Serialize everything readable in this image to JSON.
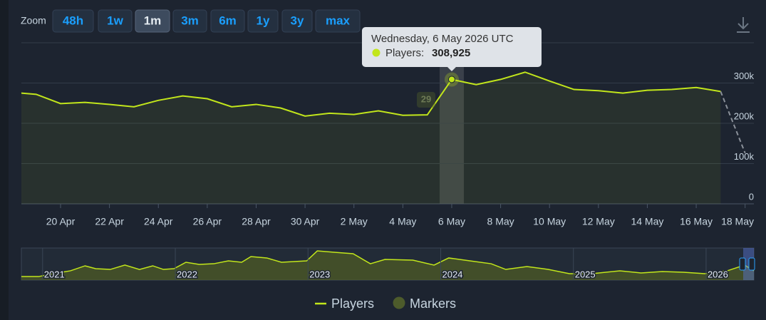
{
  "zoom_label": "Zoom",
  "zoom_buttons": [
    "48h",
    "1w",
    "1m",
    "3m",
    "6m",
    "1y",
    "3y",
    "max"
  ],
  "active_zoom": "1m",
  "chart_data": {
    "type": "line",
    "x": [
      null,
      null,
      "20 Apr",
      null,
      "22 Apr",
      null,
      "24 Apr",
      null,
      "26 Apr",
      null,
      "28 Apr",
      null,
      "30 Apr",
      null,
      "2 May",
      null,
      "4 May",
      null,
      "6 May",
      null,
      "8 May",
      null,
      "10 May",
      null,
      "12 May",
      null,
      "14 May",
      null,
      "16 May",
      null,
      "18 May"
    ],
    "series": [
      {
        "name": "Players",
        "color": "#c2e61b",
        "values": [
          277000,
          272000,
          249000,
          252000,
          247000,
          241000,
          257000,
          268000,
          261000,
          241000,
          247000,
          238000,
          218000,
          225000,
          222000,
          231000,
          220000,
          221000,
          308925,
          296000,
          309000,
          327000,
          305000,
          284000,
          281000,
          275000,
          282000,
          284000,
          289000,
          279000,
          null
        ]
      },
      {
        "color": "#8a9099",
        "dashed": true,
        "values": [
          null,
          null,
          null,
          null,
          null,
          null,
          null,
          null,
          null,
          null,
          null,
          null,
          null,
          null,
          null,
          null,
          null,
          null,
          null,
          null,
          null,
          null,
          null,
          null,
          null,
          null,
          null,
          null,
          null,
          279000,
          126000
        ]
      }
    ],
    "markers": {
      "name": "Markers",
      "color": "#4d5b2b",
      "values": [
        29
      ]
    },
    "ylim": [
      0,
      400000
    ],
    "yticks": [
      0,
      {
        "value": 100000,
        "label": "100k"
      },
      {
        "value": 200000,
        "label": "200k"
      },
      {
        "value": 300000,
        "label": "300k"
      }
    ],
    "grid": true,
    "tooltip": {
      "title": "Wednesday, 6 May 2026 UTC",
      "label": "Players:",
      "value": 308925,
      "value_label": "308,925"
    },
    "navigator": {
      "color": "#c2e61b",
      "x": [
        2020.84,
        2020.97,
        2021.11,
        2021.21,
        2021.32,
        2021.4,
        2021.51,
        2021.62,
        2021.73,
        2021.83,
        2021.91,
        2021.99,
        2022.08,
        2022.18,
        2022.29,
        2022.4,
        2022.5,
        2022.57,
        2022.69,
        2022.8,
        2022.99,
        2023.07,
        2023.2,
        2023.34,
        2023.47,
        2023.58,
        2023.79,
        2023.95,
        2024.06,
        2024.22,
        2024.38,
        2024.49,
        2024.65,
        2024.81,
        2024.97,
        2025.14,
        2025.35,
        2025.51,
        2025.67,
        2025.83,
        2025.99,
        2026.16,
        2026.29,
        2026.36
      ],
      "values": [
        44000,
        44000,
        89000,
        116000,
        178000,
        142000,
        133000,
        187000,
        133000,
        178000,
        133000,
        142000,
        222000,
        196000,
        204000,
        240000,
        222000,
        293000,
        276000,
        222000,
        240000,
        364000,
        347000,
        329000,
        204000,
        258000,
        249000,
        187000,
        276000,
        240000,
        204000,
        133000,
        169000,
        133000,
        80000,
        80000,
        116000,
        89000,
        107000,
        98000,
        80000,
        116000,
        187000,
        116000
      ],
      "xlim": [
        2020.84,
        2026.36
      ],
      "ylim": [
        0,
        400000
      ],
      "xticks": [
        2021,
        2022,
        2023,
        2024,
        2025,
        2026
      ]
    }
  }
}
